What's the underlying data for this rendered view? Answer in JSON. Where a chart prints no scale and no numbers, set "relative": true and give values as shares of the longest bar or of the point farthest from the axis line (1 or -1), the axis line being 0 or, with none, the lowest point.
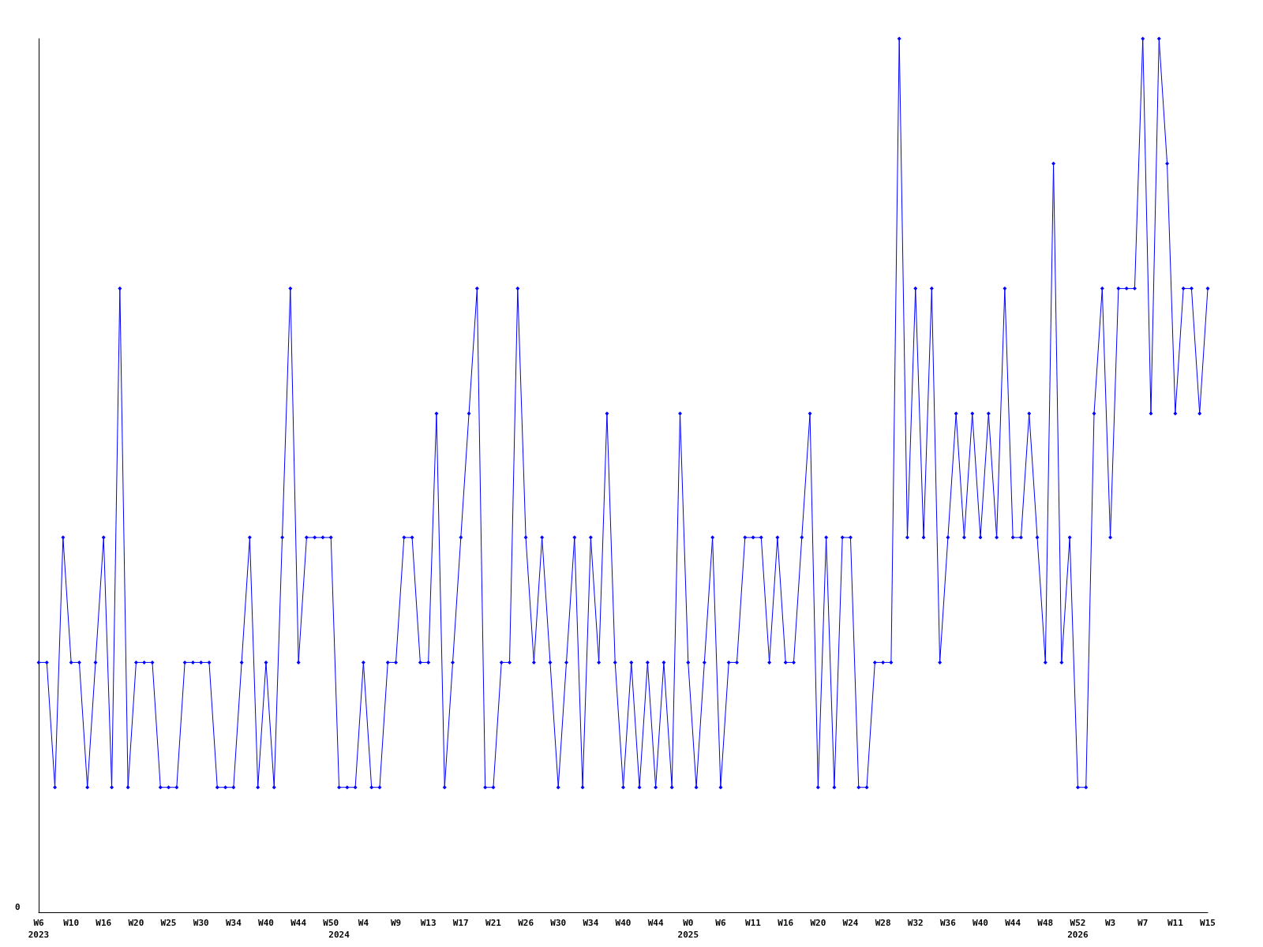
{
  "chart_data": {
    "type": "line",
    "relative": true,
    "marker": "diamond",
    "annotations": [
      "0"
    ],
    "categories": [
      "W6\n2023",
      null,
      null,
      null,
      "W10",
      null,
      null,
      null,
      "W16",
      null,
      null,
      null,
      "W20",
      null,
      null,
      null,
      "W25",
      null,
      null,
      null,
      "W30",
      null,
      null,
      null,
      "W34",
      null,
      null,
      null,
      "W40",
      null,
      null,
      null,
      "W44",
      null,
      null,
      null,
      "W50",
      "\n2024",
      null,
      null,
      "W4",
      null,
      null,
      null,
      "W9",
      null,
      null,
      null,
      "W13",
      null,
      null,
      null,
      "W17",
      null,
      null,
      null,
      "W21",
      null,
      null,
      null,
      "W26",
      null,
      null,
      null,
      "W30",
      null,
      null,
      null,
      "W34",
      null,
      null,
      null,
      "W40",
      null,
      null,
      null,
      "W44",
      null,
      null,
      null,
      "W0\n2025",
      null,
      null,
      null,
      "W6",
      null,
      null,
      null,
      "W11",
      null,
      null,
      null,
      "W16",
      null,
      null,
      null,
      "W20",
      null,
      null,
      null,
      "W24",
      null,
      null,
      null,
      "W28",
      null,
      null,
      null,
      "W32",
      null,
      null,
      null,
      "W36",
      null,
      null,
      null,
      "W40",
      null,
      null,
      null,
      "W44",
      null,
      null,
      null,
      "W48",
      null,
      null,
      null,
      "W52\n2026",
      null,
      null,
      null,
      "W3",
      null,
      null,
      null,
      "W7",
      null,
      null,
      null,
      "W11",
      null,
      null,
      null,
      "W15"
    ],
    "series": [
      {
        "color": "#0000ff",
        "values": [
          0.286,
          0.286,
          0.143,
          0.429,
          0.286,
          0.286,
          0.143,
          0.286,
          0.429,
          0.143,
          0.714,
          0.143,
          0.286,
          0.286,
          0.286,
          0.143,
          0.143,
          0.143,
          0.286,
          0.286,
          0.286,
          0.286,
          0.143,
          0.143,
          0.143,
          0.286,
          0.429,
          0.143,
          0.286,
          0.143,
          0.429,
          0.714,
          0.286,
          0.429,
          0.429,
          0.429,
          0.429,
          0.143,
          0.143,
          0.143,
          0.286,
          0.143,
          0.143,
          0.286,
          0.286,
          0.429,
          0.429,
          0.286,
          0.286,
          0.571,
          0.143,
          0.286,
          0.429,
          0.571,
          0.714,
          0.143,
          0.143,
          0.286,
          0.286,
          0.714,
          0.429,
          0.286,
          0.429,
          0.286,
          0.143,
          0.286,
          0.429,
          0.143,
          0.429,
          0.286,
          0.571,
          0.286,
          0.143,
          0.286,
          0.143,
          0.286,
          0.143,
          0.286,
          0.143,
          0.571,
          0.286,
          0.143,
          0.286,
          0.429,
          0.143,
          0.286,
          0.286,
          0.429,
          0.429,
          0.429,
          0.286,
          0.429,
          0.286,
          0.286,
          0.429,
          0.571,
          0.143,
          0.429,
          0.143,
          0.429,
          0.429,
          0.143,
          0.143,
          0.286,
          0.286,
          0.286,
          1,
          0.429,
          0.714,
          0.429,
          0.714,
          0.286,
          0.429,
          0.571,
          0.429,
          0.571,
          0.429,
          0.571,
          0.429,
          0.714,
          0.429,
          0.429,
          0.571,
          0.429,
          0.286,
          0.857,
          0.286,
          0.429,
          0.143,
          0.143,
          0.571,
          0.714,
          0.429,
          0.714,
          0.714,
          0.714,
          1,
          0.571,
          1,
          0.857,
          0.571,
          0.714,
          0.714,
          0.571,
          0.714
        ]
      }
    ]
  }
}
